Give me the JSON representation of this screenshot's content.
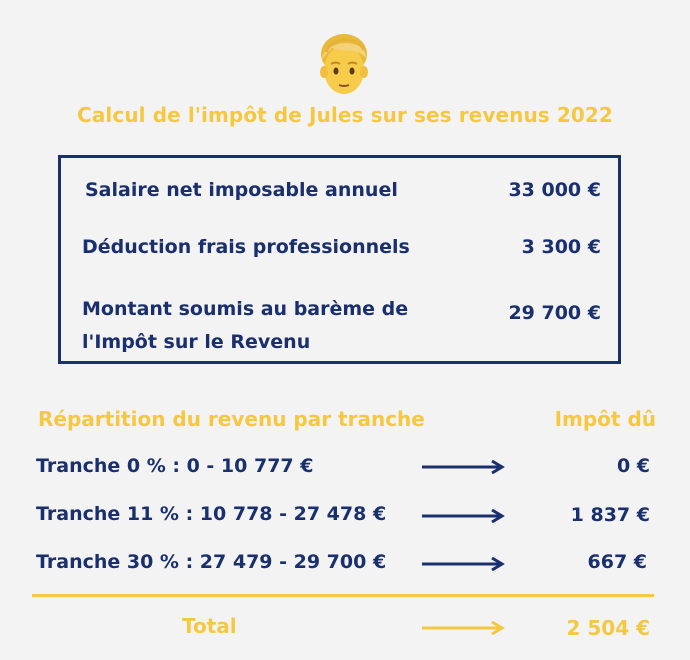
{
  "title": "Calcul de l'impôt de Jules sur ses revenus 2022",
  "emoji": "man-face-icon",
  "summary": {
    "rows": [
      {
        "label": "Salaire net imposable annuel",
        "value": "33 000 €"
      },
      {
        "label": "Déduction frais professionnels",
        "value": "3 300 €"
      },
      {
        "label_line1": "Montant soumis au barème de",
        "label_line2": "l'Impôt sur le Revenu",
        "value": "29 700 €"
      }
    ]
  },
  "brackets": {
    "header_left": "Répartition du revenu par tranche",
    "header_right": "Impôt dû",
    "rows": [
      {
        "label": "Tranche 0 % : 0 - 10 777 €",
        "value": "0 €"
      },
      {
        "label": "Tranche 11 % : 10 778 - 27 478 €",
        "value": "1 837 €"
      },
      {
        "label": "Tranche 30 % : 27 479 - 29 700 €",
        "value": "667 €"
      }
    ],
    "total_label": "Total",
    "total_value": "2 504 €"
  },
  "colors": {
    "navy": "#1a2f6e",
    "gold": "#f5c842",
    "background": "#f3f3f3"
  }
}
